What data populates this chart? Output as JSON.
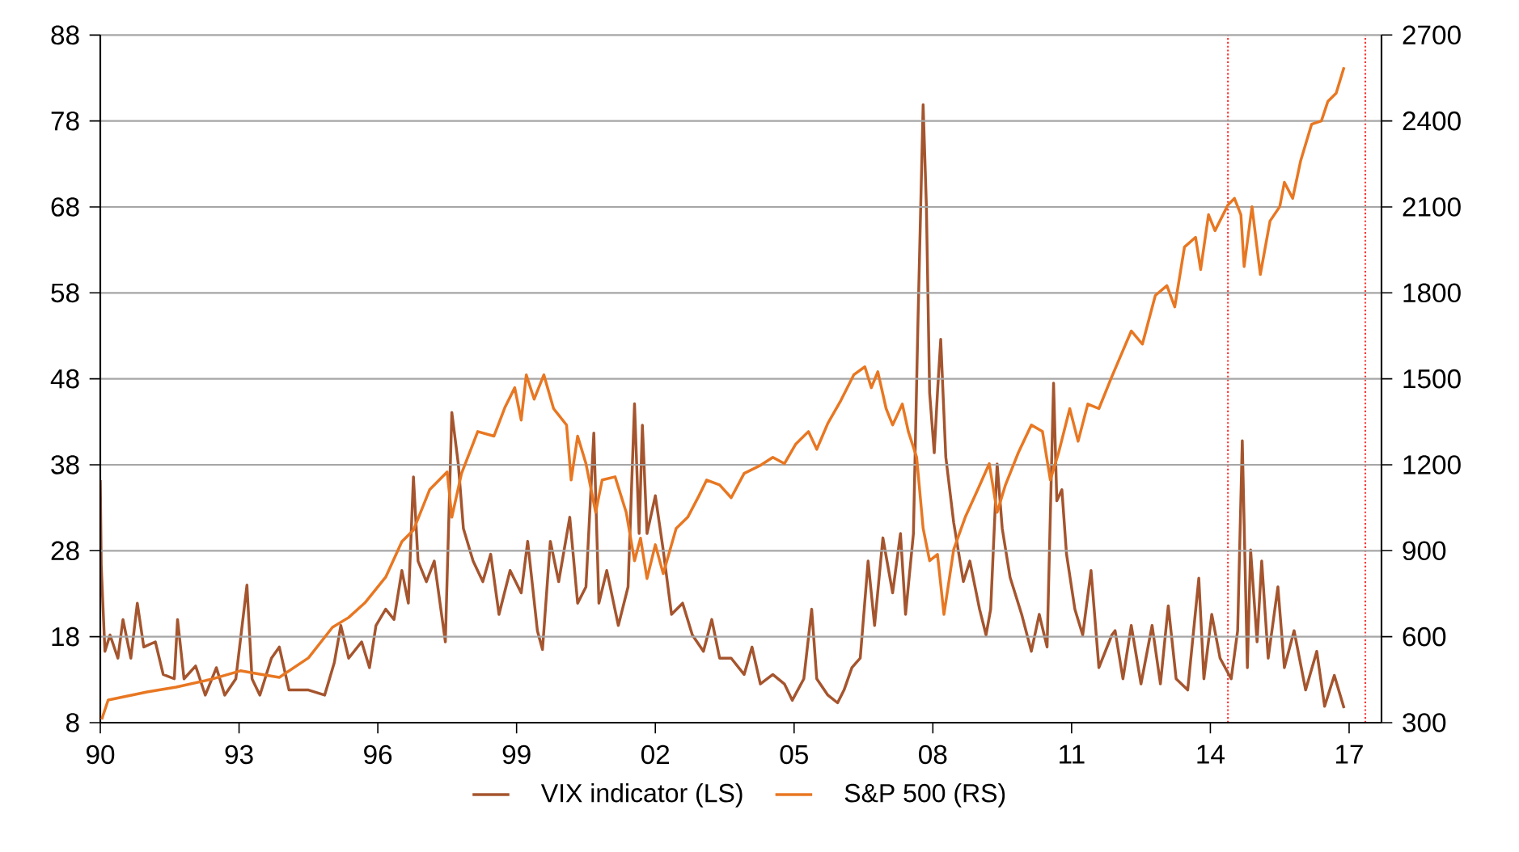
{
  "chart_data": {
    "type": "line",
    "xlim": [
      1990,
      2017.7
    ],
    "xticks": [
      {
        "value": 1990,
        "label": "90"
      },
      {
        "value": 1993,
        "label": "93"
      },
      {
        "value": 1996,
        "label": "96"
      },
      {
        "value": 1999,
        "label": "99"
      },
      {
        "value": 2002,
        "label": "02"
      },
      {
        "value": 2005,
        "label": "05"
      },
      {
        "value": 2008,
        "label": "08"
      },
      {
        "value": 2011,
        "label": "11"
      },
      {
        "value": 2014,
        "label": "14"
      },
      {
        "value": 2017,
        "label": "17"
      }
    ],
    "ylim": [
      8,
      88
    ],
    "yticks": [
      8,
      18,
      28,
      38,
      48,
      58,
      68,
      78,
      88
    ],
    "y2lim": [
      300,
      2700
    ],
    "y2ticks": [
      300,
      600,
      900,
      1200,
      1500,
      1800,
      2100,
      2400,
      2700
    ],
    "grid": "y",
    "legend": "bottom",
    "ref_lines": [
      {
        "axis": "x",
        "value": 2014.38,
        "color": "#ff3333",
        "line_style": "dotted"
      },
      {
        "axis": "x",
        "value": 2017.35,
        "color": "#ff3333",
        "line_style": "dotted"
      }
    ],
    "series": [
      {
        "name": "VIX indicator (LS)",
        "color": "#a5552e",
        "axis": "y",
        "x": [
          1990.0,
          1990.02,
          1990.05,
          1990.1,
          1990.21,
          1990.38,
          1990.49,
          1990.66,
          1990.8,
          1990.94,
          1991.19,
          1991.36,
          1991.6,
          1991.67,
          1991.81,
          1992.06,
          1992.27,
          1992.51,
          1992.69,
          1992.93,
          1993.17,
          1993.28,
          1993.45,
          1993.7,
          1993.87,
          1994.08,
          1994.5,
          1994.85,
          1995.06,
          1995.2,
          1995.37,
          1995.65,
          1995.82,
          1995.96,
          1996.17,
          1996.35,
          1996.52,
          1996.66,
          1996.77,
          1996.87,
          1997.05,
          1997.22,
          1997.46,
          1997.6,
          1997.74,
          1997.85,
          1998.06,
          1998.27,
          1998.44,
          1998.62,
          1998.86,
          1999.1,
          1999.24,
          1999.45,
          1999.56,
          1999.73,
          1999.91,
          2000.15,
          2000.32,
          2000.5,
          2000.67,
          2000.78,
          2000.95,
          2001.2,
          2001.41,
          2001.55,
          2001.65,
          2001.72,
          2001.82,
          2002.0,
          2002.17,
          2002.35,
          2002.59,
          2002.8,
          2003.04,
          2003.22,
          2003.39,
          2003.64,
          2003.92,
          2004.09,
          2004.27,
          2004.54,
          2004.79,
          2004.96,
          2005.21,
          2005.38,
          2005.49,
          2005.73,
          2005.94,
          2006.08,
          2006.25,
          2006.43,
          2006.6,
          2006.74,
          2006.92,
          2007.13,
          2007.3,
          2007.41,
          2007.58,
          2007.68,
          2007.79,
          2007.86,
          2007.93,
          2008.03,
          2008.1,
          2008.17,
          2008.28,
          2008.45,
          2008.66,
          2008.8,
          2009.01,
          2009.15,
          2009.25,
          2009.39,
          2009.5,
          2009.67,
          2009.92,
          2010.13,
          2010.3,
          2010.47,
          2010.61,
          2010.68,
          2010.79,
          2010.89,
          2011.07,
          2011.24,
          2011.42,
          2011.59,
          2011.87,
          2011.94,
          2012.11,
          2012.29,
          2012.5,
          2012.74,
          2012.92,
          2013.09,
          2013.26,
          2013.51,
          2013.75,
          2013.86,
          2014.03,
          2014.21,
          2014.45,
          2014.59,
          2014.69,
          2014.8,
          2014.87,
          2015.01,
          2015.11,
          2015.25,
          2015.46,
          2015.6,
          2015.81,
          2016.06,
          2016.3,
          2016.47,
          2016.68,
          2016.89
        ],
        "values": [
          36.2,
          26.3,
          22.5,
          16.3,
          18.2,
          15.5,
          20.0,
          15.5,
          21.9,
          16.8,
          17.4,
          13.6,
          13.1,
          20.0,
          13.1,
          14.6,
          11.2,
          14.4,
          11.2,
          13.1,
          24.0,
          13.1,
          11.2,
          15.5,
          16.8,
          11.8,
          11.8,
          11.2,
          15.0,
          19.3,
          15.5,
          17.4,
          14.4,
          19.3,
          21.2,
          20.0,
          25.7,
          21.9,
          36.6,
          26.8,
          24.4,
          26.8,
          17.4,
          44.1,
          38.1,
          30.6,
          26.8,
          24.4,
          27.6,
          20.6,
          25.7,
          23.1,
          29.1,
          18.7,
          16.5,
          29.1,
          24.4,
          31.9,
          21.9,
          23.8,
          41.7,
          21.9,
          25.7,
          19.3,
          23.8,
          45.1,
          30.0,
          42.6,
          30.0,
          34.4,
          28.1,
          20.6,
          21.9,
          18.2,
          16.3,
          20.0,
          15.5,
          15.5,
          13.6,
          16.8,
          12.5,
          13.6,
          12.5,
          10.6,
          13.1,
          21.2,
          13.1,
          11.2,
          10.3,
          11.8,
          14.4,
          15.5,
          26.8,
          19.3,
          29.5,
          23.1,
          30.0,
          20.6,
          30.0,
          55.1,
          79.9,
          68.2,
          46.4,
          39.4,
          46.4,
          52.6,
          38.9,
          31.3,
          24.4,
          26.8,
          21.2,
          18.2,
          21.2,
          38.1,
          30.6,
          24.9,
          20.6,
          16.3,
          20.6,
          16.8,
          47.5,
          33.8,
          35.1,
          27.6,
          21.2,
          18.2,
          25.7,
          14.4,
          18.2,
          18.7,
          13.1,
          19.3,
          12.5,
          19.3,
          12.5,
          21.6,
          13.1,
          11.8,
          24.8,
          13.1,
          20.6,
          15.5,
          13.1,
          18.7,
          40.8,
          14.4,
          28.1,
          17.4,
          26.8,
          15.5,
          23.8,
          14.4,
          18.7,
          11.8,
          16.3,
          9.9,
          13.5,
          9.7
        ]
      },
      {
        "name": "S&P 500 (RS)",
        "color": "#e87722",
        "axis": "y2",
        "x": [
          1990.03,
          1990.17,
          1991.01,
          1991.64,
          1992.41,
          1993.03,
          1993.45,
          1993.87,
          1994.5,
          1995.02,
          1995.37,
          1995.72,
          1996.17,
          1996.52,
          1996.77,
          1997.12,
          1997.5,
          1997.6,
          1997.81,
          1998.16,
          1998.51,
          1998.75,
          1998.96,
          1999.1,
          1999.21,
          1999.38,
          1999.59,
          1999.8,
          2000.08,
          2000.18,
          2000.32,
          2000.5,
          2000.71,
          2000.85,
          2001.13,
          2001.37,
          2001.55,
          2001.68,
          2001.82,
          2002.0,
          2002.17,
          2002.45,
          2002.7,
          2002.94,
          2003.11,
          2003.39,
          2003.64,
          2003.92,
          2004.27,
          2004.54,
          2004.79,
          2005.03,
          2005.31,
          2005.49,
          2005.73,
          2006.01,
          2006.29,
          2006.53,
          2006.67,
          2006.81,
          2006.99,
          2007.13,
          2007.34,
          2007.47,
          2007.65,
          2007.79,
          2007.93,
          2008.1,
          2008.24,
          2008.45,
          2008.7,
          2008.97,
          2009.22,
          2009.39,
          2009.57,
          2009.85,
          2010.13,
          2010.37,
          2010.54,
          2010.72,
          2010.96,
          2011.14,
          2011.35,
          2011.59,
          2011.87,
          2012.11,
          2012.29,
          2012.53,
          2012.81,
          2013.06,
          2013.23,
          2013.44,
          2013.68,
          2013.79,
          2013.96,
          2014.1,
          2014.38,
          2014.52,
          2014.66,
          2014.73,
          2014.9,
          2015.08,
          2015.29,
          2015.5,
          2015.6,
          2015.78,
          2015.95,
          2016.19,
          2016.4,
          2016.54,
          2016.72,
          2016.89
        ],
        "values": [
          311,
          379,
          407,
          424,
          452,
          481,
          469,
          458,
          526,
          633,
          667,
          718,
          808,
          932,
          972,
          1113,
          1175,
          1017,
          1170,
          1316,
          1300,
          1401,
          1469,
          1356,
          1514,
          1429,
          1514,
          1396,
          1339,
          1147,
          1300,
          1204,
          1034,
          1147,
          1158,
          1034,
          865,
          944,
          803,
          921,
          820,
          978,
          1017,
          1091,
          1147,
          1130,
          1085,
          1170,
          1198,
          1226,
          1204,
          1271,
          1316,
          1254,
          1345,
          1424,
          1514,
          1542,
          1469,
          1525,
          1396,
          1339,
          1412,
          1316,
          1226,
          978,
          865,
          887,
          678,
          904,
          1017,
          1113,
          1204,
          1034,
          1130,
          1243,
          1339,
          1316,
          1147,
          1243,
          1396,
          1282,
          1412,
          1396,
          1508,
          1599,
          1667,
          1621,
          1791,
          1825,
          1751,
          1960,
          1994,
          1881,
          2073,
          2017,
          2107,
          2130,
          2073,
          1892,
          2101,
          1864,
          2051,
          2101,
          2186,
          2130,
          2260,
          2389,
          2400,
          2468,
          2497,
          2587
        ]
      }
    ]
  }
}
